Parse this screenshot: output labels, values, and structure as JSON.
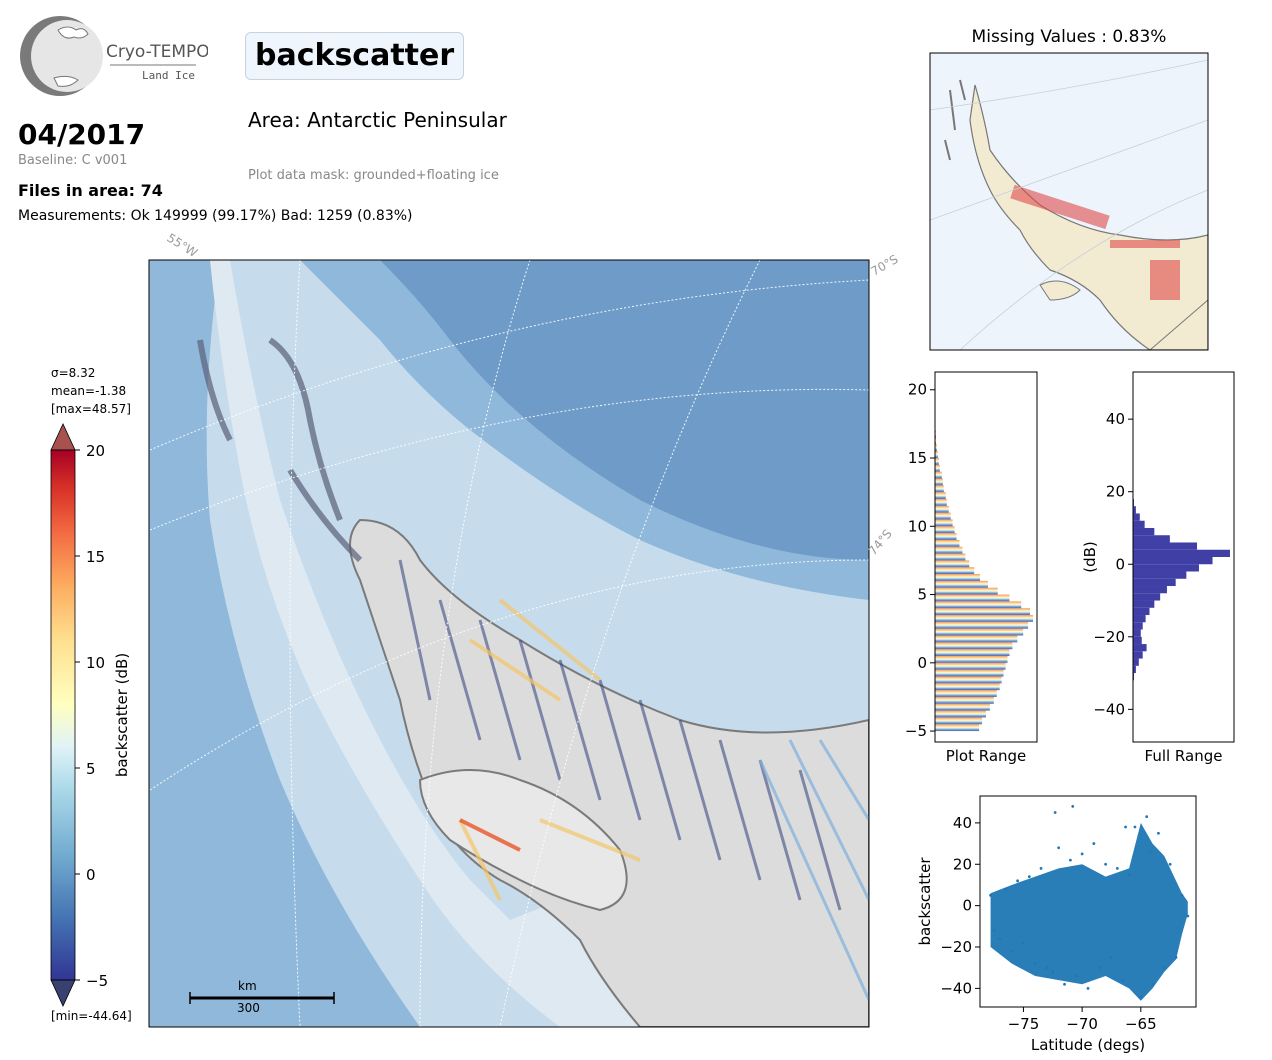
{
  "header": {
    "logo_name": "Cryo-TEMPO",
    "logo_sub": "Land Ice",
    "title": "backscatter",
    "period": "04/2017",
    "baseline": "Baseline: C v001",
    "files": "Files in area: 74",
    "measurements": "Measurements: Ok 149999 (99.17%) Bad: 1259 (0.83%)",
    "area": "Area: Antarctic Peninsular",
    "mask": "Plot data mask: grounded+floating ice"
  },
  "colors": {
    "ocean": "#8fb8da",
    "ocean_deep": "#6e9bc8",
    "shelf": "#c6dcec",
    "land": "#dcdcdc",
    "hist_full": "#3f3fa6",
    "scatter": "#1f77b4",
    "minimap_land": "#f2ebd2",
    "minimap_ocean": "#eef4fc",
    "minimap_points": "#e04b4b"
  },
  "colorbar": {
    "label": "backscatter (dB)",
    "sigma": "σ=8.32",
    "mean": "mean=-1.38",
    "max": "[max=48.57]",
    "min": "[min=-44.64]",
    "ticks": [
      "20",
      "15",
      "10",
      "5",
      "0",
      "−5"
    ]
  },
  "map": {
    "graticule_labels": [
      "55°W",
      "70°S",
      "74°S"
    ],
    "scalebar_unit": "km",
    "scalebar_value": "300"
  },
  "minimap": {
    "title": "Missing Values : 0.83%"
  },
  "chart_data": [
    {
      "type": "bar",
      "name": "plot-range-histogram",
      "orientation": "horizontal",
      "xlabel": "Plot Range",
      "ylabel": "",
      "ylim": [
        -5.8,
        21.3
      ],
      "yticks": [
        "−5",
        "0",
        "5",
        "10",
        "15",
        "20"
      ],
      "bins": [
        -5.0,
        -4.5,
        -4.0,
        -3.5,
        -3.0,
        -2.5,
        -2.0,
        -1.5,
        -1.0,
        -0.5,
        0.0,
        0.5,
        1.0,
        1.5,
        2.0,
        2.5,
        3.0,
        3.5,
        4.0,
        4.5,
        5.0,
        5.5,
        6.0,
        6.5,
        7.0,
        7.5,
        8.0,
        8.5,
        9.0,
        9.5,
        10.0,
        10.5,
        11.0,
        11.5,
        12.0,
        12.5,
        13.0,
        13.5,
        14.0,
        14.5,
        15.0,
        15.5,
        16.0,
        16.5
      ],
      "values": [
        45,
        48,
        52,
        56,
        60,
        63,
        66,
        68,
        70,
        72,
        74,
        76,
        79,
        84,
        90,
        95,
        100,
        97,
        88,
        76,
        64,
        54,
        46,
        40,
        35,
        31,
        28,
        25,
        22,
        20,
        18,
        16,
        14,
        12,
        11,
        9,
        8,
        7,
        5,
        4,
        3,
        2,
        1,
        1
      ]
    },
    {
      "type": "bar",
      "name": "full-range-histogram",
      "orientation": "horizontal",
      "xlabel": "Full Range",
      "ylabel": "(dB)",
      "ylim": [
        -49,
        53
      ],
      "yticks": [
        "−40",
        "−20",
        "0",
        "20",
        "40"
      ],
      "bins": [
        -32,
        -30,
        -28,
        -26,
        -24,
        -22,
        -20,
        -18,
        -16,
        -14,
        -12,
        -10,
        -8,
        -6,
        -4,
        -2,
        0,
        2,
        4,
        6,
        8,
        10,
        12,
        14,
        16
      ],
      "values": [
        1,
        3,
        6,
        10,
        14,
        9,
        8,
        10,
        13,
        17,
        22,
        28,
        35,
        44,
        55,
        68,
        82,
        100,
        66,
        38,
        22,
        12,
        7,
        3,
        1
      ]
    },
    {
      "type": "scatter",
      "name": "latitude-scatter",
      "xlabel": "Latitude (degs)",
      "ylabel": "backscatter",
      "xlim": [
        -78.7,
        -60.3
      ],
      "ylim": [
        -49,
        53
      ],
      "xticks": [
        "−75",
        "−70",
        "−65"
      ],
      "yticks": [
        "−40",
        "−20",
        "0",
        "20",
        "40"
      ],
      "series": [
        {
          "points": [
            [
              -77.8,
              5
            ],
            [
              -77.5,
              -12
            ],
            [
              -77,
              -16
            ],
            [
              -76.5,
              8
            ],
            [
              -76,
              -22
            ],
            [
              -75.5,
              12
            ],
            [
              -75,
              -18
            ],
            [
              -74.5,
              14
            ],
            [
              -74,
              -28
            ],
            [
              -73.5,
              18
            ],
            [
              -73,
              -30
            ],
            [
              -72.5,
              -32
            ],
            [
              -72,
              28
            ],
            [
              -71.5,
              -38
            ],
            [
              -71,
              22
            ],
            [
              -70.5,
              -34
            ],
            [
              -70,
              25
            ],
            [
              -69.5,
              -40
            ],
            [
              -69,
              30
            ],
            [
              -68.5,
              -30
            ],
            [
              -68,
              20
            ],
            [
              -67.5,
              -25
            ],
            [
              -67,
              18
            ],
            [
              -66.5,
              -36
            ],
            [
              -66,
              15
            ],
            [
              -65.5,
              38
            ],
            [
              -65,
              -44
            ],
            [
              -64.5,
              43
            ],
            [
              -64,
              -38
            ],
            [
              -63.5,
              35
            ],
            [
              -63,
              -30
            ],
            [
              -62.5,
              20
            ],
            [
              -62,
              -25
            ],
            [
              -61.5,
              5
            ],
            [
              -61,
              -5
            ],
            [
              -72.3,
              45
            ],
            [
              -70.8,
              48
            ],
            [
              -66.3,
              38
            ],
            [
              -64.2,
              26
            ]
          ]
        }
      ]
    }
  ]
}
